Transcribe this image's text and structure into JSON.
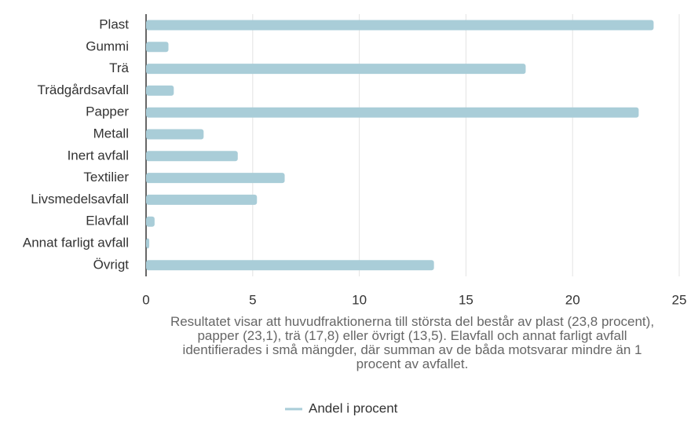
{
  "chart_data": {
    "type": "hbar",
    "annotation": "Resultatet visar att huvudfraktionerna till största del består av plast (23,8 procent), papper (23,1), trä (17,8) eller övrigt (13,5). Elavfall och annat farligt avfall identifierades i små mängder, där summan av de båda motsvarar mindre än 1 procent av avfallet.",
    "categories": [
      "Plast",
      "Gummi",
      "Trä",
      "Trädgårdsavfall",
      "Papper",
      "Metall",
      "Inert avfall",
      "Textilier",
      "Livsmedelsavfall",
      "Elavfall",
      "Annat farligt avfall",
      "Övrigt"
    ],
    "series": [
      {
        "name": "Andel i procent",
        "color": "#a9cdd8",
        "values": [
          23.8,
          1.05,
          17.8,
          1.3,
          23.1,
          2.7,
          4.3,
          6.5,
          5.2,
          0.4,
          0.15,
          13.5
        ]
      }
    ],
    "xlim": [
      0,
      25
    ],
    "xticks": [
      0,
      5,
      10,
      15,
      20,
      25
    ],
    "grid": true,
    "legend": "bottom"
  }
}
